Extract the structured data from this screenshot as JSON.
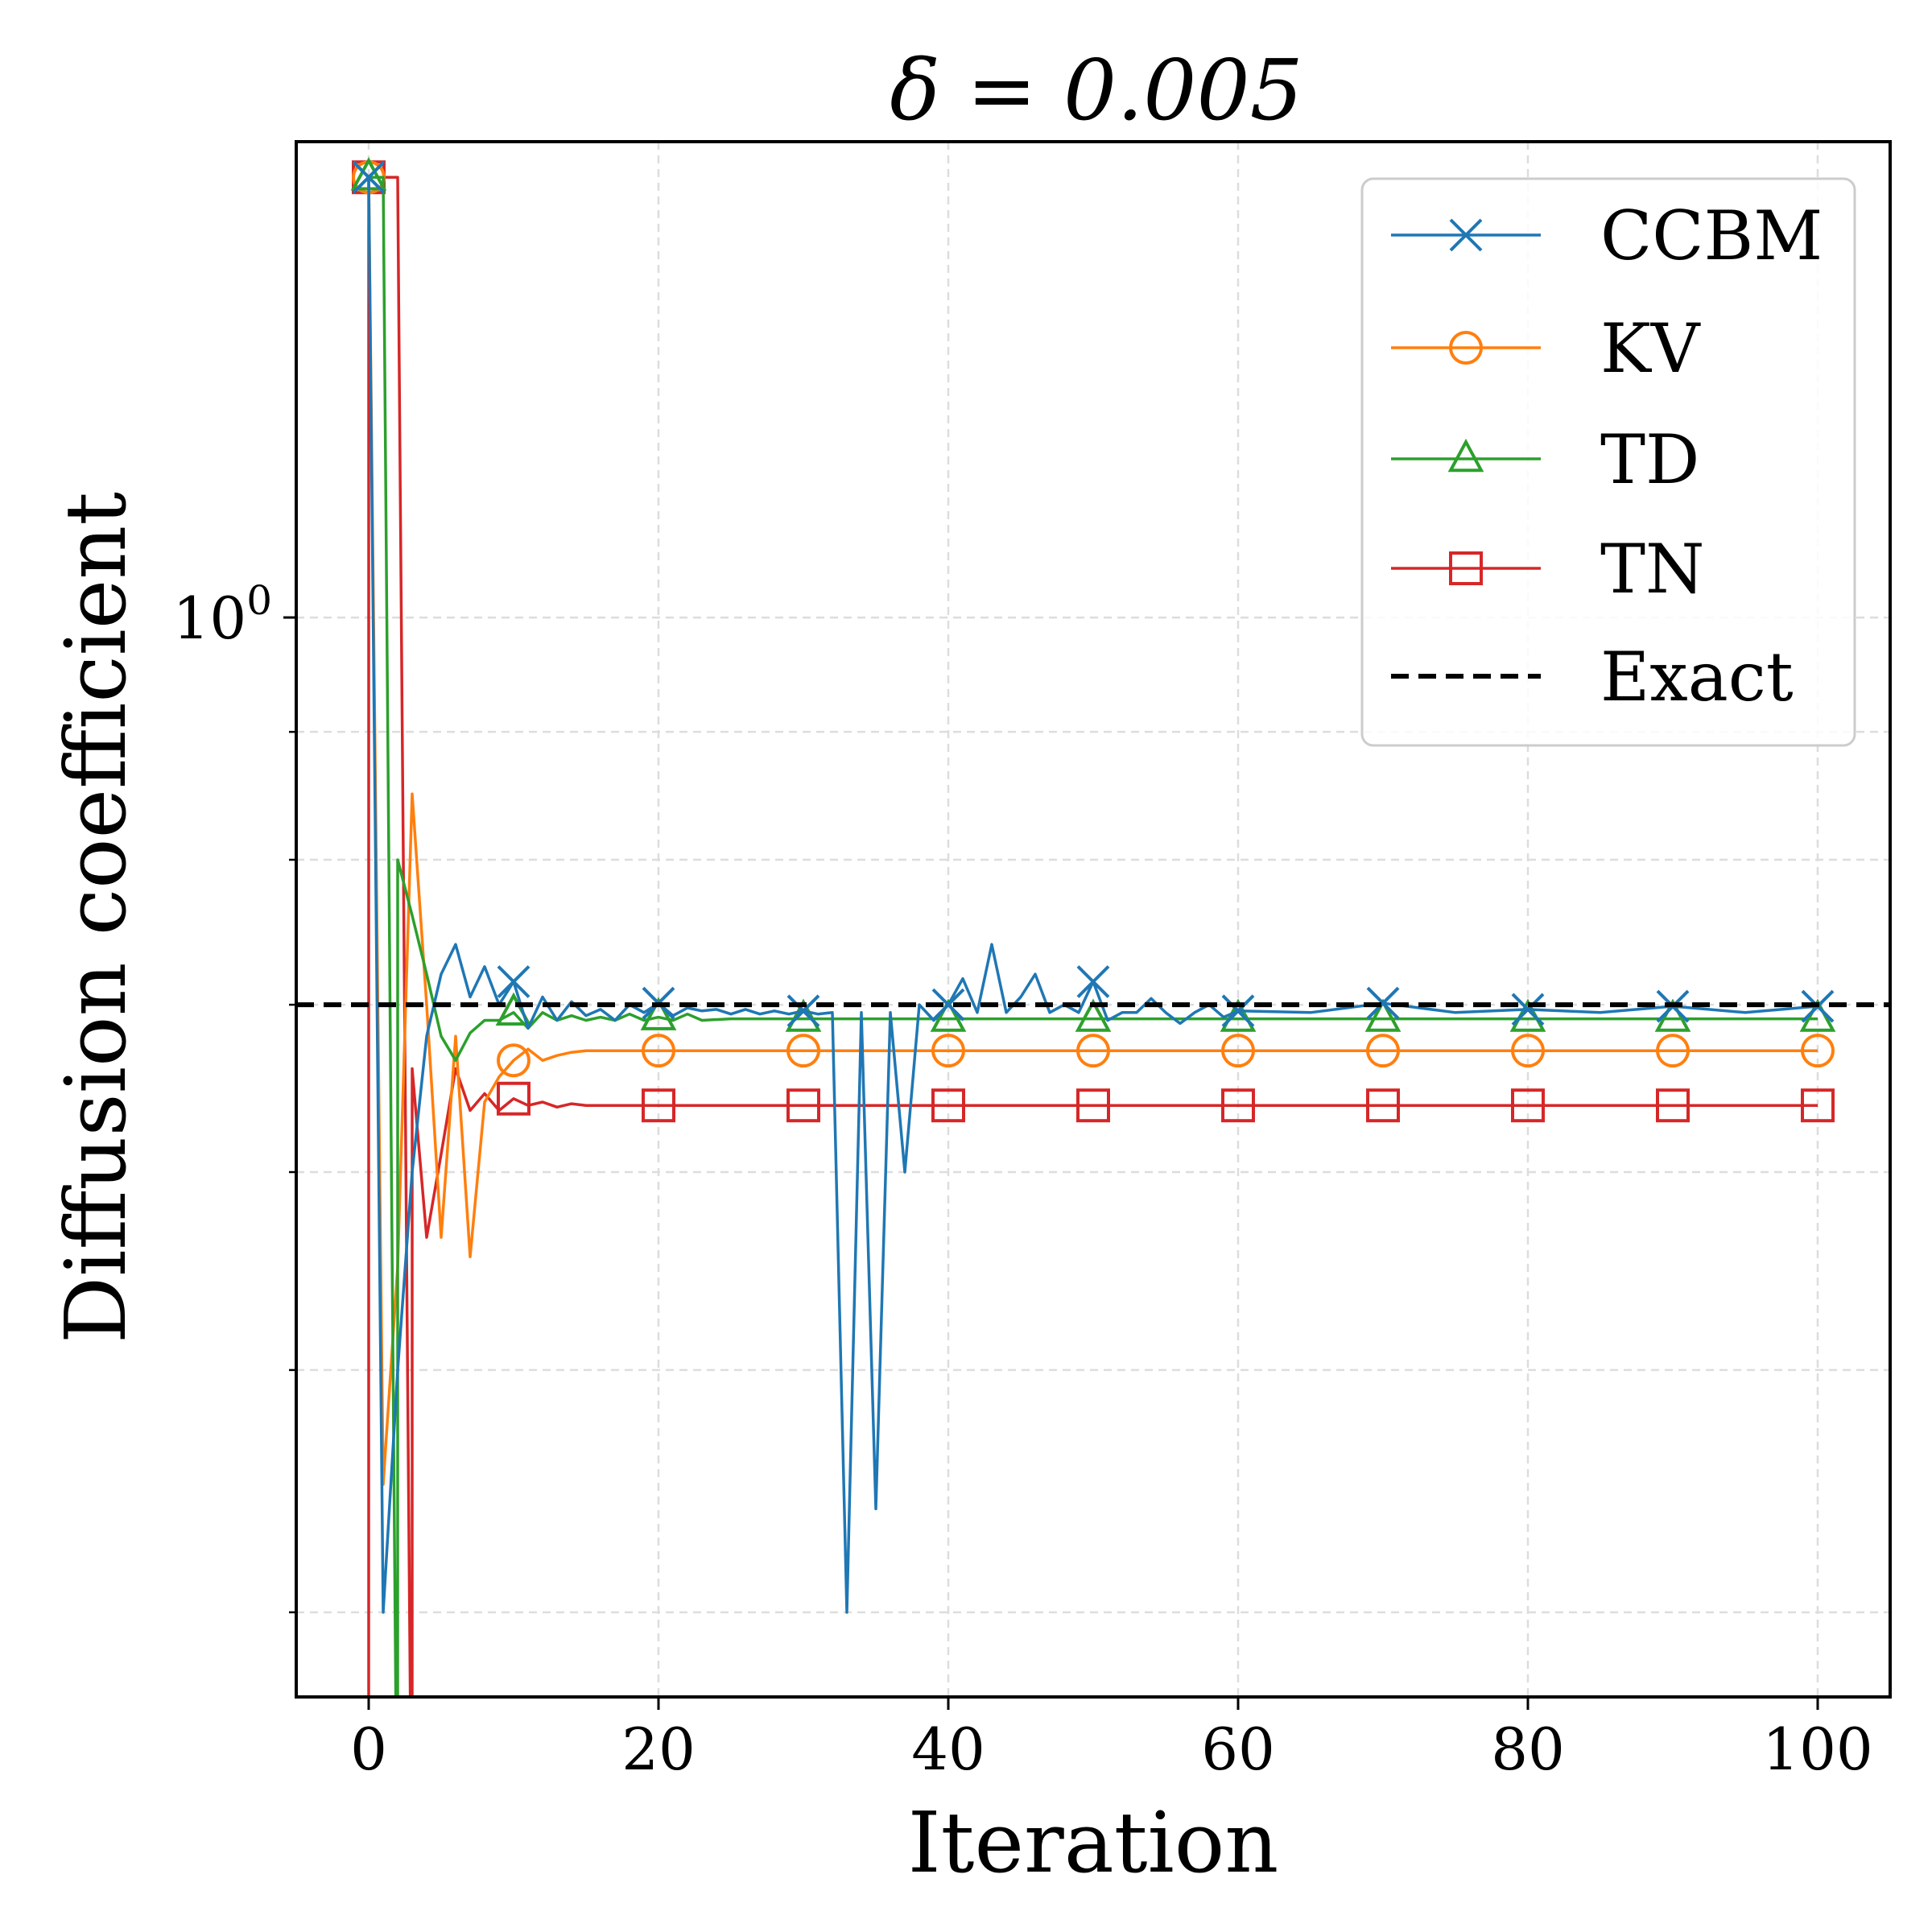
{
  "chart_data": {
    "type": "line",
    "title": "δ = 0.005",
    "xlabel": "Iteration",
    "ylabel": "Diffusion coefficient",
    "xlim": [
      -5,
      105
    ],
    "ylim": [
      0.37,
      1.55
    ],
    "yscale": "log",
    "grid": true,
    "legend_position": "top-right",
    "x_ticks": [
      0,
      20,
      40,
      60,
      80,
      100
    ],
    "x_tick_labels": [
      "0",
      "20",
      "40",
      "60",
      "80",
      "100"
    ],
    "y_tick_label_base": "10",
    "y_tick_label_exp": "0",
    "y_major_tick": 1.0,
    "y_minor_ticks": [
      0.4,
      0.5,
      0.6,
      0.7,
      0.8,
      0.9,
      1.0,
      2.0
    ],
    "exact_value": 0.7,
    "series": [
      {
        "name": "CCBM",
        "color": "#1f77b4",
        "marker": "x",
        "points": [
          [
            0,
            1.5
          ],
          [
            1,
            0.4
          ],
          [
            2,
            0.5
          ],
          [
            3,
            0.6
          ],
          [
            4,
            0.68
          ],
          [
            5,
            0.72
          ],
          [
            6,
            0.74
          ],
          [
            7,
            0.705
          ],
          [
            8,
            0.725
          ],
          [
            9,
            0.7
          ],
          [
            10,
            0.715
          ],
          [
            11,
            0.685
          ],
          [
            12,
            0.705
          ],
          [
            13,
            0.69
          ],
          [
            14,
            0.702
          ],
          [
            15,
            0.693
          ],
          [
            16,
            0.697
          ],
          [
            17,
            0.69
          ],
          [
            18,
            0.7
          ],
          [
            19,
            0.695
          ],
          [
            20,
            0.701
          ],
          [
            21,
            0.693
          ],
          [
            22,
            0.698
          ],
          [
            23,
            0.696
          ],
          [
            24,
            0.697
          ],
          [
            25,
            0.694
          ],
          [
            26,
            0.697
          ],
          [
            27,
            0.694
          ],
          [
            28,
            0.696
          ],
          [
            29,
            0.694
          ],
          [
            30,
            0.696
          ],
          [
            31,
            0.694
          ],
          [
            32,
            0.695
          ],
          [
            33,
            0.4
          ],
          [
            34,
            0.695
          ],
          [
            35,
            0.44
          ],
          [
            36,
            0.695
          ],
          [
            37,
            0.6
          ],
          [
            38,
            0.7
          ],
          [
            39,
            0.69
          ],
          [
            40,
            0.7
          ],
          [
            41,
            0.717
          ],
          [
            42,
            0.695
          ],
          [
            43,
            0.74
          ],
          [
            44,
            0.695
          ],
          [
            45,
            0.705
          ],
          [
            46,
            0.72
          ],
          [
            47,
            0.695
          ],
          [
            48,
            0.7
          ],
          [
            49,
            0.695
          ],
          [
            50,
            0.715
          ],
          [
            51,
            0.69
          ],
          [
            52,
            0.695
          ],
          [
            53,
            0.695
          ],
          [
            54,
            0.704
          ],
          [
            55,
            0.695
          ],
          [
            56,
            0.688
          ],
          [
            57,
            0.695
          ],
          [
            58,
            0.7
          ],
          [
            59,
            0.692
          ],
          [
            60,
            0.696
          ],
          [
            65,
            0.695
          ],
          [
            70,
            0.701
          ],
          [
            75,
            0.695
          ],
          [
            80,
            0.697
          ],
          [
            85,
            0.695
          ],
          [
            90,
            0.699
          ],
          [
            95,
            0.695
          ],
          [
            100,
            0.699
          ]
        ],
        "marker_x": [
          0,
          10,
          20,
          30,
          40,
          50,
          60,
          70,
          80,
          90,
          100
        ]
      },
      {
        "name": "KV",
        "color": "#ff7f0e",
        "marker": "o",
        "points": [
          [
            0,
            1.5
          ],
          [
            1,
            0.45
          ],
          [
            2,
            0.55
          ],
          [
            3,
            0.85
          ],
          [
            4,
            0.7
          ],
          [
            5,
            0.565
          ],
          [
            6,
            0.68
          ],
          [
            7,
            0.555
          ],
          [
            8,
            0.64
          ],
          [
            9,
            0.655
          ],
          [
            10,
            0.665
          ],
          [
            11,
            0.672
          ],
          [
            12,
            0.665
          ],
          [
            13,
            0.668
          ],
          [
            14,
            0.67
          ],
          [
            15,
            0.671
          ],
          [
            17,
            0.671
          ],
          [
            20,
            0.671
          ],
          [
            30,
            0.671
          ],
          [
            40,
            0.671
          ],
          [
            50,
            0.671
          ],
          [
            60,
            0.671
          ],
          [
            70,
            0.671
          ],
          [
            80,
            0.671
          ],
          [
            90,
            0.671
          ],
          [
            100,
            0.671
          ]
        ],
        "marker_x": [
          0,
          10,
          20,
          30,
          40,
          50,
          60,
          70,
          80,
          90,
          100
        ]
      },
      {
        "name": "TD",
        "color": "#2ca02c",
        "marker": "^",
        "points": [
          [
            0,
            1.5
          ],
          [
            1,
            1.5
          ],
          [
            2,
            0.3
          ],
          [
            2,
            0.8
          ],
          [
            3,
            0.76
          ],
          [
            4,
            0.72
          ],
          [
            5,
            0.68
          ],
          [
            6,
            0.665
          ],
          [
            7,
            0.682
          ],
          [
            8,
            0.69
          ],
          [
            9,
            0.69
          ],
          [
            10,
            0.695
          ],
          [
            11,
            0.685
          ],
          [
            12,
            0.695
          ],
          [
            13,
            0.69
          ],
          [
            14,
            0.693
          ],
          [
            15,
            0.69
          ],
          [
            16,
            0.692
          ],
          [
            17,
            0.69
          ],
          [
            18,
            0.694
          ],
          [
            19,
            0.69
          ],
          [
            20,
            0.692
          ],
          [
            21,
            0.69
          ],
          [
            22,
            0.694
          ],
          [
            23,
            0.69
          ],
          [
            25,
            0.691
          ],
          [
            30,
            0.691
          ],
          [
            40,
            0.691
          ],
          [
            50,
            0.691
          ],
          [
            60,
            0.691
          ],
          [
            70,
            0.691
          ],
          [
            80,
            0.691
          ],
          [
            90,
            0.691
          ],
          [
            100,
            0.691
          ]
        ],
        "marker_x": [
          0,
          10,
          20,
          30,
          40,
          50,
          60,
          70,
          80,
          90,
          100
        ]
      },
      {
        "name": "TN",
        "color": "#d62728",
        "marker": "s",
        "points": [
          [
            0,
            1.5
          ],
          [
            0,
            0.3
          ],
          [
            0,
            1.5
          ],
          [
            1,
            1.5
          ],
          [
            2,
            1.5
          ],
          [
            3,
            0.3
          ],
          [
            3,
            0.66
          ],
          [
            4,
            0.565
          ],
          [
            5,
            0.61
          ],
          [
            6,
            0.66
          ],
          [
            7,
            0.635
          ],
          [
            8,
            0.645
          ],
          [
            9,
            0.635
          ],
          [
            10,
            0.642
          ],
          [
            11,
            0.638
          ],
          [
            12,
            0.64
          ],
          [
            13,
            0.637
          ],
          [
            14,
            0.639
          ],
          [
            15,
            0.638
          ],
          [
            20,
            0.638
          ],
          [
            30,
            0.638
          ],
          [
            40,
            0.638
          ],
          [
            50,
            0.638
          ],
          [
            60,
            0.638
          ],
          [
            70,
            0.638
          ],
          [
            80,
            0.638
          ],
          [
            90,
            0.638
          ],
          [
            100,
            0.638
          ]
        ],
        "marker_x": [
          0,
          10,
          20,
          30,
          40,
          50,
          60,
          70,
          80,
          90,
          100
        ]
      },
      {
        "name": "Exact",
        "color": "#000000",
        "marker": "none",
        "dashed": true,
        "points": [
          [
            -5,
            0.7
          ],
          [
            105,
            0.7
          ]
        ],
        "marker_x": []
      }
    ]
  }
}
